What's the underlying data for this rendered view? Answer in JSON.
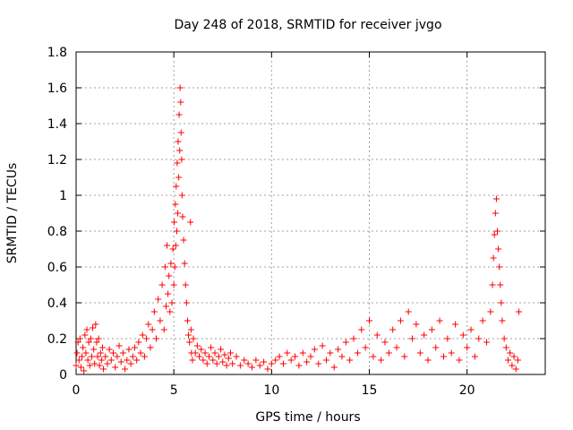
{
  "chart_data": {
    "type": "scatter",
    "title": "Day 248 of 2018, SRMTID for receiver jvgo",
    "xlabel": "GPS time / hours",
    "ylabel": "SRMTID / TECUs",
    "xlim": [
      0,
      24
    ],
    "ylim": [
      0,
      1.8
    ],
    "xticks": [
      0,
      5,
      10,
      15,
      20
    ],
    "yticks": [
      0,
      0.2,
      0.4,
      0.6,
      0.8,
      1,
      1.2,
      1.4,
      1.6,
      1.8
    ],
    "xtick_labels": [
      "0",
      "5",
      "10",
      "15",
      "20"
    ],
    "ytick_labels": [
      "0",
      "0.2",
      "0.4",
      "0.6",
      "0.8",
      "1",
      "1.2",
      "1.4",
      "1.6",
      "1.8"
    ],
    "grid": true,
    "marker": "+",
    "color": "#ff0000",
    "series": [
      {
        "name": "SRMTID",
        "points": [
          [
            0.0,
            0.05
          ],
          [
            0.05,
            0.12
          ],
          [
            0.1,
            0.18
          ],
          [
            0.15,
            0.08
          ],
          [
            0.2,
            0.2
          ],
          [
            0.25,
            0.04
          ],
          [
            0.3,
            0.1
          ],
          [
            0.35,
            0.15
          ],
          [
            0.4,
            0.02
          ],
          [
            0.45,
            0.22
          ],
          [
            0.5,
            0.12
          ],
          [
            0.55,
            0.25
          ],
          [
            0.6,
            0.08
          ],
          [
            0.65,
            0.18
          ],
          [
            0.7,
            0.05
          ],
          [
            0.75,
            0.2
          ],
          [
            0.8,
            0.1
          ],
          [
            0.85,
            0.26
          ],
          [
            0.9,
            0.14
          ],
          [
            0.95,
            0.06
          ],
          [
            1.0,
            0.28
          ],
          [
            1.05,
            0.18
          ],
          [
            1.1,
            0.1
          ],
          [
            1.15,
            0.2
          ],
          [
            1.2,
            0.05
          ],
          [
            1.25,
            0.12
          ],
          [
            1.3,
            0.08
          ],
          [
            1.35,
            0.15
          ],
          [
            1.4,
            0.03
          ],
          [
            1.5,
            0.1
          ],
          [
            1.6,
            0.06
          ],
          [
            1.7,
            0.14
          ],
          [
            1.8,
            0.08
          ],
          [
            1.9,
            0.12
          ],
          [
            2.0,
            0.04
          ],
          [
            2.1,
            0.1
          ],
          [
            2.2,
            0.16
          ],
          [
            2.3,
            0.07
          ],
          [
            2.4,
            0.12
          ],
          [
            2.5,
            0.03
          ],
          [
            2.6,
            0.08
          ],
          [
            2.7,
            0.14
          ],
          [
            2.8,
            0.06
          ],
          [
            2.9,
            0.1
          ],
          [
            3.0,
            0.15
          ],
          [
            3.1,
            0.08
          ],
          [
            3.2,
            0.18
          ],
          [
            3.3,
            0.12
          ],
          [
            3.4,
            0.22
          ],
          [
            3.5,
            0.1
          ],
          [
            3.6,
            0.2
          ],
          [
            3.7,
            0.28
          ],
          [
            3.8,
            0.15
          ],
          [
            3.9,
            0.25
          ],
          [
            4.0,
            0.35
          ],
          [
            4.1,
            0.2
          ],
          [
            4.2,
            0.42
          ],
          [
            4.3,
            0.3
          ],
          [
            4.4,
            0.5
          ],
          [
            4.5,
            0.25
          ],
          [
            4.55,
            0.6
          ],
          [
            4.6,
            0.38
          ],
          [
            4.65,
            0.72
          ],
          [
            4.7,
            0.45
          ],
          [
            4.75,
            0.55
          ],
          [
            4.8,
            0.35
          ],
          [
            4.85,
            0.62
          ],
          [
            4.9,
            0.4
          ],
          [
            4.95,
            0.7
          ],
          [
            5.0,
            0.5
          ],
          [
            5.02,
            0.85
          ],
          [
            5.05,
            0.6
          ],
          [
            5.08,
            0.95
          ],
          [
            5.1,
            0.72
          ],
          [
            5.12,
            1.05
          ],
          [
            5.15,
            0.8
          ],
          [
            5.17,
            1.18
          ],
          [
            5.2,
            0.9
          ],
          [
            5.22,
            1.3
          ],
          [
            5.25,
            1.1
          ],
          [
            5.27,
            1.45
          ],
          [
            5.3,
            1.25
          ],
          [
            5.32,
            1.6
          ],
          [
            5.35,
            1.52
          ],
          [
            5.37,
            1.35
          ],
          [
            5.4,
            1.2
          ],
          [
            5.42,
            1.0
          ],
          [
            5.45,
            0.88
          ],
          [
            5.5,
            0.75
          ],
          [
            5.55,
            0.62
          ],
          [
            5.6,
            0.5
          ],
          [
            5.65,
            0.4
          ],
          [
            5.7,
            0.3
          ],
          [
            5.75,
            0.22
          ],
          [
            5.8,
            0.18
          ],
          [
            5.85,
            0.85
          ],
          [
            5.88,
            0.25
          ],
          [
            5.9,
            0.12
          ],
          [
            5.95,
            0.08
          ],
          [
            6.0,
            0.2
          ],
          [
            6.1,
            0.12
          ],
          [
            6.2,
            0.16
          ],
          [
            6.3,
            0.1
          ],
          [
            6.4,
            0.14
          ],
          [
            6.5,
            0.08
          ],
          [
            6.6,
            0.12
          ],
          [
            6.7,
            0.06
          ],
          [
            6.8,
            0.1
          ],
          [
            6.9,
            0.15
          ],
          [
            7.0,
            0.08
          ],
          [
            7.1,
            0.12
          ],
          [
            7.2,
            0.06
          ],
          [
            7.3,
            0.1
          ],
          [
            7.4,
            0.14
          ],
          [
            7.5,
            0.07
          ],
          [
            7.6,
            0.11
          ],
          [
            7.7,
            0.05
          ],
          [
            7.8,
            0.09
          ],
          [
            7.9,
            0.12
          ],
          [
            8.0,
            0.06
          ],
          [
            8.2,
            0.1
          ],
          [
            8.4,
            0.05
          ],
          [
            8.6,
            0.08
          ],
          [
            8.8,
            0.06
          ],
          [
            9.0,
            0.04
          ],
          [
            9.2,
            0.08
          ],
          [
            9.4,
            0.05
          ],
          [
            9.6,
            0.07
          ],
          [
            9.8,
            0.03
          ],
          [
            10.0,
            0.06
          ],
          [
            10.2,
            0.08
          ],
          [
            10.4,
            0.1
          ],
          [
            10.6,
            0.06
          ],
          [
            10.8,
            0.12
          ],
          [
            11.0,
            0.08
          ],
          [
            11.2,
            0.1
          ],
          [
            11.4,
            0.05
          ],
          [
            11.6,
            0.12
          ],
          [
            11.8,
            0.07
          ],
          [
            12.0,
            0.1
          ],
          [
            12.2,
            0.14
          ],
          [
            12.4,
            0.06
          ],
          [
            12.6,
            0.16
          ],
          [
            12.8,
            0.08
          ],
          [
            13.0,
            0.12
          ],
          [
            13.2,
            0.04
          ],
          [
            13.4,
            0.14
          ],
          [
            13.6,
            0.1
          ],
          [
            13.8,
            0.18
          ],
          [
            14.0,
            0.08
          ],
          [
            14.2,
            0.2
          ],
          [
            14.4,
            0.12
          ],
          [
            14.6,
            0.25
          ],
          [
            14.8,
            0.15
          ],
          [
            15.0,
            0.3
          ],
          [
            15.2,
            0.1
          ],
          [
            15.4,
            0.22
          ],
          [
            15.6,
            0.08
          ],
          [
            15.8,
            0.18
          ],
          [
            16.0,
            0.12
          ],
          [
            16.2,
            0.25
          ],
          [
            16.4,
            0.15
          ],
          [
            16.6,
            0.3
          ],
          [
            16.8,
            0.1
          ],
          [
            17.0,
            0.35
          ],
          [
            17.2,
            0.2
          ],
          [
            17.4,
            0.28
          ],
          [
            17.6,
            0.12
          ],
          [
            17.8,
            0.22
          ],
          [
            18.0,
            0.08
          ],
          [
            18.2,
            0.25
          ],
          [
            18.4,
            0.15
          ],
          [
            18.6,
            0.3
          ],
          [
            18.8,
            0.1
          ],
          [
            19.0,
            0.2
          ],
          [
            19.2,
            0.12
          ],
          [
            19.4,
            0.28
          ],
          [
            19.6,
            0.08
          ],
          [
            19.8,
            0.22
          ],
          [
            20.0,
            0.15
          ],
          [
            20.2,
            0.25
          ],
          [
            20.4,
            0.1
          ],
          [
            20.6,
            0.2
          ],
          [
            20.8,
            0.3
          ],
          [
            21.0,
            0.18
          ],
          [
            21.2,
            0.35
          ],
          [
            21.3,
            0.5
          ],
          [
            21.35,
            0.65
          ],
          [
            21.4,
            0.78
          ],
          [
            21.45,
            0.9
          ],
          [
            21.5,
            0.98
          ],
          [
            21.55,
            0.8
          ],
          [
            21.6,
            0.7
          ],
          [
            21.65,
            0.6
          ],
          [
            21.7,
            0.5
          ],
          [
            21.75,
            0.4
          ],
          [
            21.8,
            0.3
          ],
          [
            21.9,
            0.2
          ],
          [
            22.0,
            0.15
          ],
          [
            22.1,
            0.08
          ],
          [
            22.2,
            0.12
          ],
          [
            22.3,
            0.05
          ],
          [
            22.4,
            0.1
          ],
          [
            22.5,
            0.03
          ],
          [
            22.6,
            0.08
          ],
          [
            22.65,
            0.35
          ]
        ]
      }
    ]
  }
}
